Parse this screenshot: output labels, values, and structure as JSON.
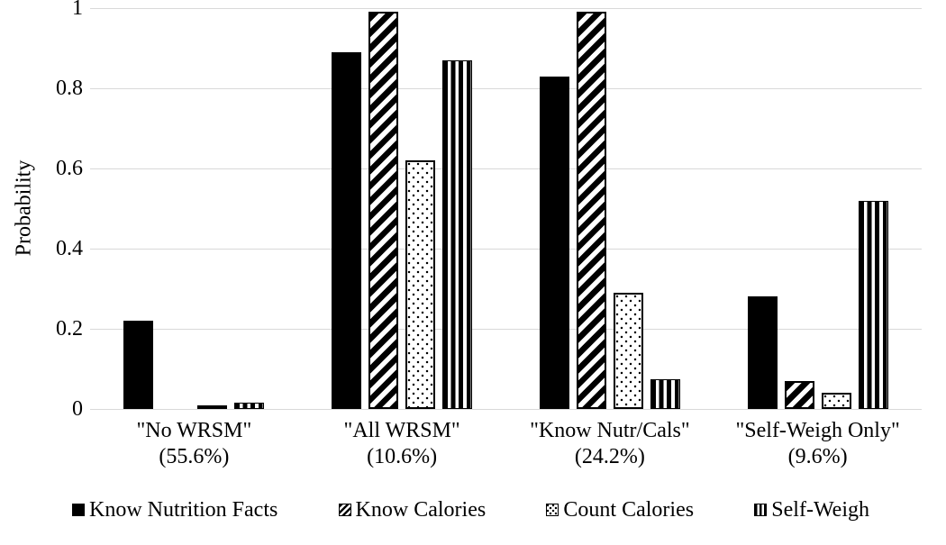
{
  "chart_data": {
    "type": "bar",
    "title": "",
    "xlabel": "",
    "ylabel": "Probability",
    "ylim": [
      0,
      1
    ],
    "yticks": [
      0,
      0.2,
      0.4,
      0.6,
      0.8,
      1
    ],
    "ytick_labels": [
      "0",
      "0.2",
      "0.4",
      "0.6",
      "0.8",
      "1"
    ],
    "grid": true,
    "legend_position": "bottom",
    "categories": [
      "\"No WRSM\"",
      "\"All WRSM\"",
      "\"Know Nutr/Cals\"",
      "\"Self-Weigh Only\""
    ],
    "category_shares": [
      "(55.6%)",
      "(10.6%)",
      "(24.2%)",
      "(9.6%)"
    ],
    "series": [
      {
        "name": "Know Nutrition Facts",
        "pattern": "solid",
        "values": [
          0.22,
          0.89,
          0.83,
          0.28
        ]
      },
      {
        "name": "Know Calories",
        "pattern": "diagonal-stripes",
        "values": [
          0,
          0.99,
          0.99,
          0.07
        ]
      },
      {
        "name": "Count Calories",
        "pattern": "dots",
        "values": [
          0.01,
          0.62,
          0.29,
          0.04
        ]
      },
      {
        "name": "Self-Weigh",
        "pattern": "vertical-stripes",
        "values": [
          0.015,
          0.87,
          0.075,
          0.52
        ]
      }
    ],
    "colors": {
      "bar_ink": "#000000",
      "background": "#ffffff",
      "gridline": "#d9d9d9",
      "text": "#000000"
    }
  }
}
